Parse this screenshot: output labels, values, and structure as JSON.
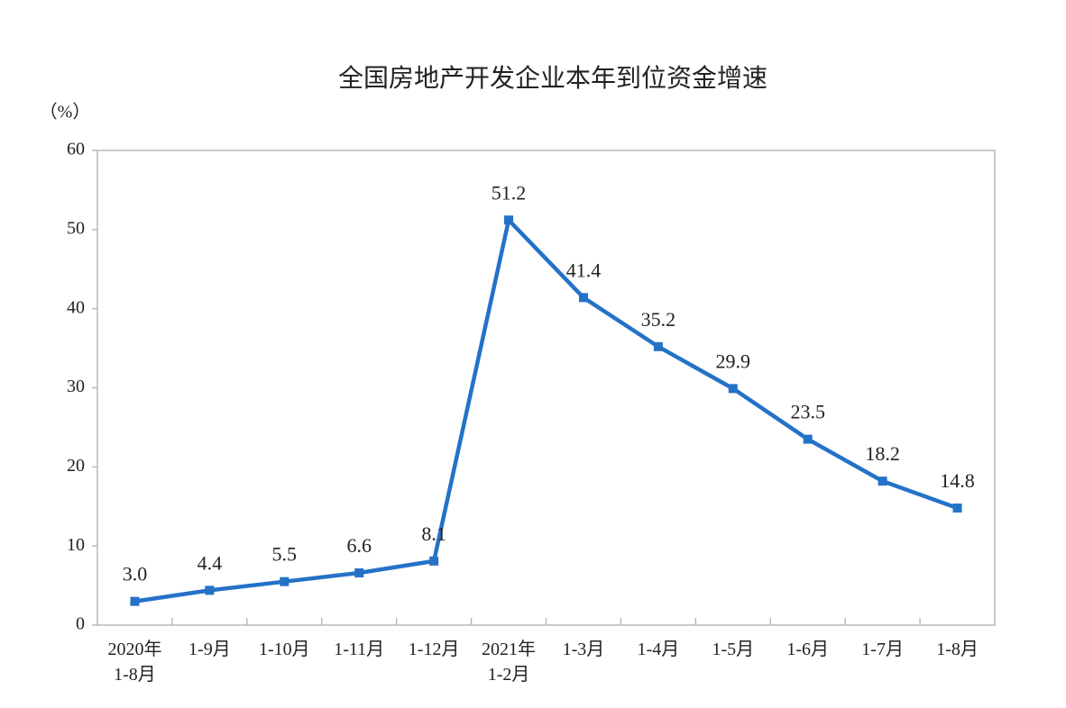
{
  "chart_data": {
    "type": "line",
    "title": "全国房地产开发企业本年到位资金增速",
    "y_label": "（%）",
    "categories": [
      "2020年\n1-8月",
      "1-9月",
      "1-10月",
      "1-11月",
      "1-12月",
      "2021年\n1-2月",
      "1-3月",
      "1-4月",
      "1-5月",
      "1-6月",
      "1-7月",
      "1-8月"
    ],
    "values": [
      3.0,
      4.4,
      5.5,
      6.6,
      8.1,
      51.2,
      41.4,
      35.2,
      29.9,
      23.5,
      18.2,
      14.8
    ],
    "value_labels": [
      "3.0",
      "4.4",
      "5.5",
      "6.6",
      "8.1",
      "51.2",
      "41.4",
      "35.2",
      "29.9",
      "23.5",
      "18.2",
      "14.8"
    ],
    "color": "#2472c8",
    "ylim": [
      0,
      60
    ],
    "yticks": [
      0,
      10,
      20,
      30,
      40,
      50,
      60
    ],
    "grid": false
  }
}
